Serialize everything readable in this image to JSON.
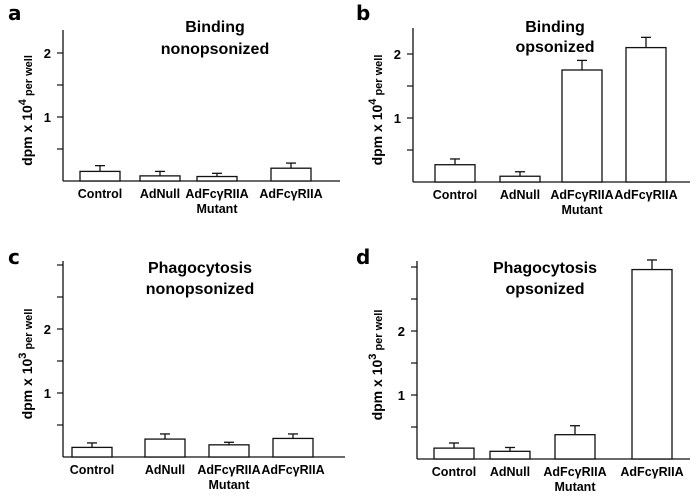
{
  "chart_data": [
    {
      "type": "bar",
      "panel_label": "a",
      "title": [
        "Binding",
        "nonopsonized"
      ],
      "ylabel": {
        "main": "dpm x 10",
        "exp": "4",
        "unit": " per well"
      },
      "categories": [
        [
          "Control"
        ],
        [
          "AdNull"
        ],
        [
          "AdFcγRIIA",
          "Mutant"
        ],
        [
          "AdFcγRIIA"
        ]
      ],
      "values": [
        0.15,
        0.08,
        0.07,
        0.2
      ],
      "errors": [
        0.09,
        0.07,
        0.05,
        0.08
      ],
      "ylim": [
        0,
        2.4
      ],
      "yticks": [
        0.5,
        1,
        1.5,
        2
      ],
      "ytick_labels": {
        "1": "1",
        "2": "2"
      }
    },
    {
      "type": "bar",
      "panel_label": "b",
      "title": [
        "Binding",
        "opsonized"
      ],
      "ylabel": {
        "main": "dpm x 10",
        "exp": "4",
        "unit": " per well"
      },
      "categories": [
        [
          "Control"
        ],
        [
          "AdNull"
        ],
        [
          "AdFcγRIIA",
          "Mutant"
        ],
        [
          "AdFcγRIIA"
        ]
      ],
      "values": [
        0.27,
        0.09,
        1.75,
        2.1
      ],
      "errors": [
        0.09,
        0.07,
        0.15,
        0.16
      ],
      "ylim": [
        0,
        2.4
      ],
      "yticks": [
        0.5,
        1,
        1.5,
        2
      ],
      "ytick_labels": {
        "1": "1",
        "2": "2"
      }
    },
    {
      "type": "bar",
      "panel_label": "c",
      "title": [
        "Phagocytosis",
        "nonopsonized"
      ],
      "ylabel": {
        "main": "dpm x 10",
        "exp": "3",
        "unit": " per well"
      },
      "categories": [
        [
          "Control"
        ],
        [
          "AdNull"
        ],
        [
          "AdFcγRIIA",
          "Mutant"
        ],
        [
          "AdFcγRIIA"
        ]
      ],
      "values": [
        0.15,
        0.28,
        0.19,
        0.29
      ],
      "errors": [
        0.07,
        0.08,
        0.04,
        0.07
      ],
      "ylim": [
        0,
        3
      ],
      "yticks": [
        0.5,
        1,
        1.5,
        2,
        2.5,
        3
      ],
      "ytick_labels": {
        "1": "1",
        "2": "2"
      }
    },
    {
      "type": "bar",
      "panel_label": "d",
      "title": [
        "Phagocytosis",
        "opsonized"
      ],
      "ylabel": {
        "main": "dpm x 10",
        "exp": "3",
        "unit": " per well"
      },
      "categories": [
        [
          "Control"
        ],
        [
          "AdNull"
        ],
        [
          "AdFcγRIIA",
          "Mutant"
        ],
        [
          "AdFcγRIIA"
        ]
      ],
      "values": [
        0.17,
        0.12,
        0.38,
        2.96
      ],
      "errors": [
        0.08,
        0.06,
        0.14,
        0.15
      ],
      "ylim": [
        0,
        3
      ],
      "yticks": [
        0.5,
        1,
        1.5,
        2,
        2.5,
        3
      ],
      "ytick_labels": {
        "1": "1",
        "2": "2"
      }
    }
  ]
}
